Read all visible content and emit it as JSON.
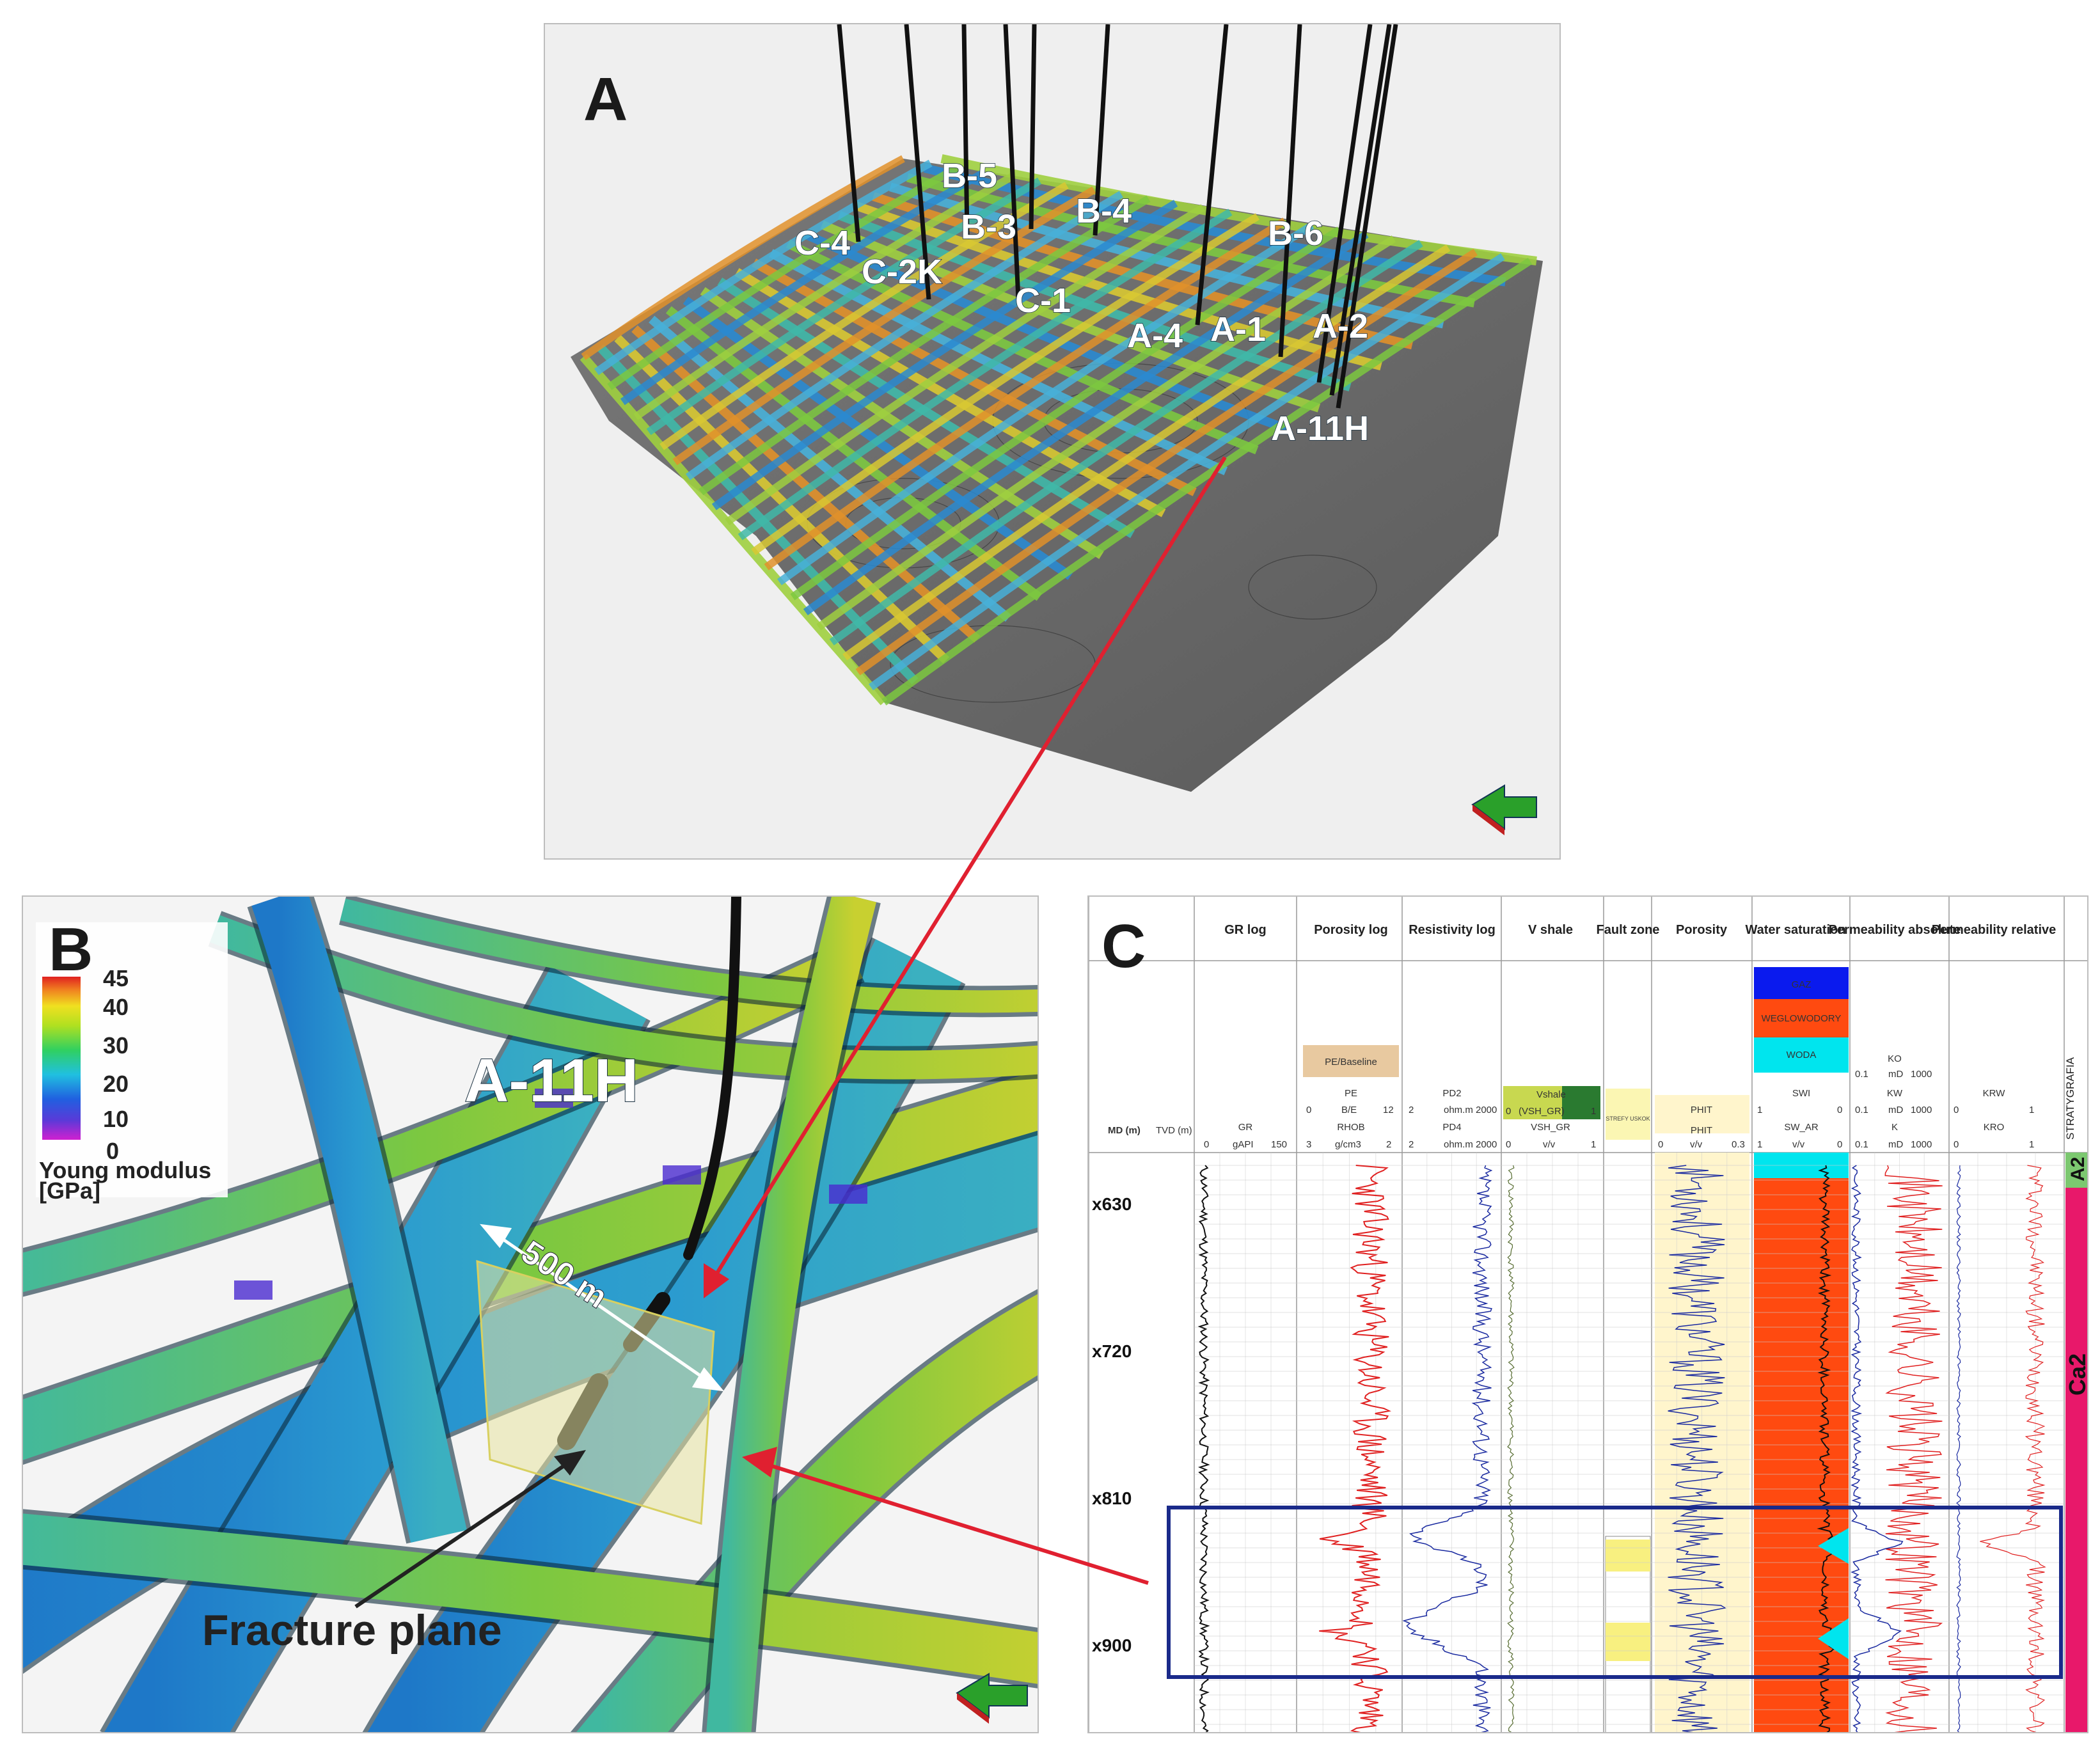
{
  "panels": {
    "a": {
      "letter": "A"
    },
    "b": {
      "letter": "B"
    },
    "c": {
      "letter": "C"
    }
  },
  "wells_a": [
    "B-5",
    "B-3",
    "B-4",
    "C-4",
    "C-2K",
    "C-1",
    "B-6",
    "A-4",
    "A-1",
    "A-2",
    "A-11H"
  ],
  "panel_b": {
    "well_label": "A-11H",
    "scale_label": "500 m",
    "fracture_label": "Fracture plane",
    "legend": {
      "ticks": [
        "45",
        "40",
        "30",
        "20",
        "10",
        "0"
      ],
      "title_line1": "Young modulus",
      "title_line2": "[GPa]"
    }
  },
  "panel_c": {
    "header": {
      "md": "MD (m)",
      "tvd": "TVD (m)",
      "tracks": [
        "GR log",
        "Porosity log",
        "Resistivity log",
        "V shale",
        "Fault zone",
        "Porosity",
        "Water saturation",
        "Permeability absolute",
        "Permeability relative"
      ],
      "stratygrafia": "STRATYGRAFIA"
    },
    "curves": {
      "gr": {
        "name": "GR",
        "scale": [
          "0",
          "gAPI",
          "150"
        ]
      },
      "porosity_log": {
        "box": "PE/Baseline",
        "pe": "PE",
        "pe_scale": [
          "0",
          "B/E",
          "12"
        ],
        "rhob": "RHOB",
        "rhob_scale": [
          "3",
          "g/cm3",
          "2"
        ]
      },
      "resistivity": {
        "pd2": "PD2",
        "pd2_scale": [
          "2",
          "ohm.m",
          "2000"
        ],
        "pd4": "PD4",
        "pd4_scale": [
          "2",
          "ohm.m",
          "2000"
        ]
      },
      "vshale": {
        "box": "Vshale",
        "box_scale": [
          "0",
          "(VSH_GR)",
          "1"
        ],
        "name": "VSH_GR",
        "scale": [
          "0",
          "v/v",
          "1"
        ]
      },
      "fault": {
        "label": "STREFY USKOK"
      },
      "porosity": {
        "box": "PHIT",
        "name": "PHIT",
        "scale": [
          "0",
          "v/v",
          "0.3"
        ]
      },
      "sw": {
        "gaz": "GAZ",
        "weglo": "WEGLOWODORY",
        "woda": "WODA",
        "swi": "SWI",
        "swi_scale": [
          "1",
          "0"
        ],
        "name": "SW_AR",
        "scale": [
          "1",
          "v/v",
          "0"
        ]
      },
      "perm_abs": {
        "ko": "KO",
        "ko_scale": [
          "0.1",
          "mD",
          "1000"
        ],
        "kw": "KW",
        "kw_scale": [
          "0.1",
          "mD",
          "1000"
        ],
        "k": "K",
        "k_scale": [
          "0.1",
          "mD",
          "1000"
        ]
      },
      "perm_rel": {
        "krw": "KRW",
        "krw_scale": [
          "0",
          "1"
        ],
        "kro": "KRO",
        "kro_scale": [
          "0",
          "1"
        ]
      }
    },
    "depths": [
      "x630",
      "x720",
      "x810",
      "x900"
    ],
    "strat": [
      "A2",
      "Ca2"
    ]
  },
  "colors": {
    "gr": "#111111",
    "rhob": "#e02020",
    "pd": "#1a2aa0",
    "vshale": "#c8d850",
    "phit": "#fff5cc",
    "sw_hc": "#ff4a10",
    "sw_water": "#00e5ee",
    "gas": "#0a1aee",
    "fault_fill": "#f8f080",
    "strat_a2": "#7cc870",
    "strat_ca2": "#e8186a",
    "highlight_box": "#1a2a8a",
    "arrow": "#e02030"
  }
}
